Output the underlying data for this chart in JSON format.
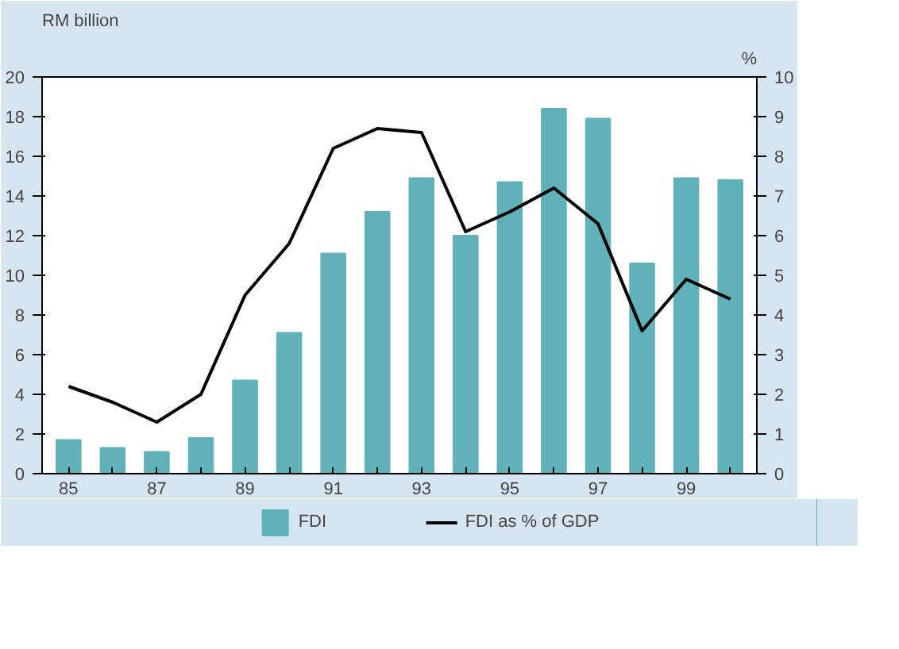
{
  "chart_data": {
    "type": "bar",
    "ylabel": "RM billion",
    "y2label": "%",
    "categories": [
      "85",
      null,
      "87",
      null,
      "89",
      null,
      "91",
      null,
      "93",
      null,
      "95",
      null,
      "97",
      null,
      "99",
      null
    ],
    "series": [
      {
        "name": "FDI",
        "color": "#5fb3b8",
        "values": [
          1.7,
          1.3,
          1.1,
          1.8,
          4.7,
          7.1,
          11.1,
          13.2,
          14.9,
          12.0,
          14.7,
          18.4,
          17.9,
          10.6,
          14.9,
          14.8
        ]
      },
      {
        "name": "FDI as % of GDP",
        "type": "line",
        "axis": "y2",
        "color": "#000000",
        "values": [
          2.2,
          1.8,
          1.3,
          2.0,
          4.5,
          5.8,
          8.2,
          8.7,
          8.6,
          6.1,
          6.6,
          7.2,
          6.3,
          3.6,
          4.9,
          4.4
        ]
      }
    ],
    "ylim": [
      0,
      20
    ],
    "yticks": [
      0,
      2,
      4,
      6,
      8,
      10,
      12,
      14,
      16,
      18,
      20
    ],
    "y2lim": [
      0,
      10
    ],
    "y2ticks": [
      0,
      1,
      2,
      3,
      4,
      5,
      6,
      7,
      8,
      9,
      10
    ],
    "grid": false,
    "legend": "bottom",
    "marker": "none",
    "line_style": "solid"
  }
}
